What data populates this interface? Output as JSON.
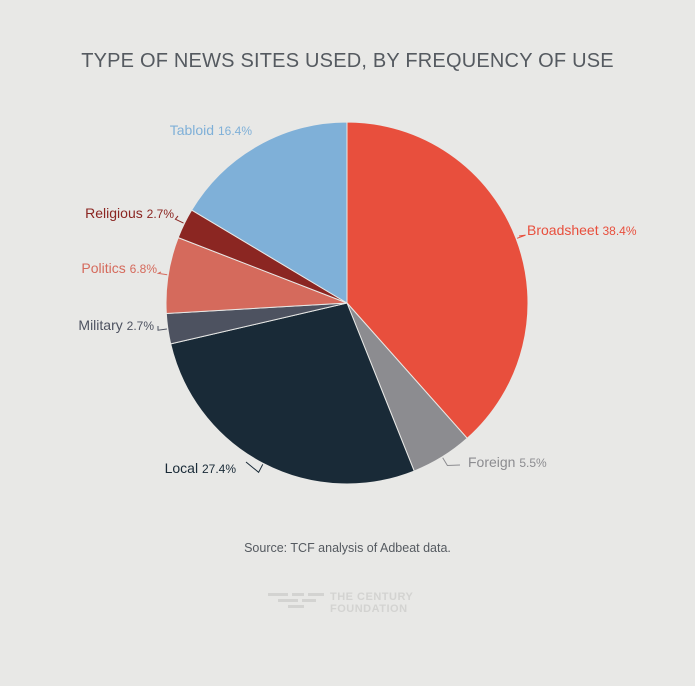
{
  "chart_data": {
    "type": "pie",
    "title": "TYPE OF NEWS SITES USED, BY FREQUENCY OF USE",
    "slices": [
      {
        "label": "Broadsheet",
        "value": 38.4,
        "value_label": "38.4%",
        "color": "#e84f3d"
      },
      {
        "label": "Foreign",
        "value": 5.5,
        "value_label": "5.5%",
        "color": "#8c8c90"
      },
      {
        "label": "Local",
        "value": 27.4,
        "value_label": "27.4%",
        "color": "#192a37"
      },
      {
        "label": "Military",
        "value": 2.7,
        "value_label": "2.7%",
        "color": "#4d5260"
      },
      {
        "label": "Politics",
        "value": 6.8,
        "value_label": "6.8%",
        "color": "#d56a5c"
      },
      {
        "label": "Religious",
        "value": 2.7,
        "value_label": "2.7%",
        "color": "#8b2622"
      },
      {
        "label": "Tabloid",
        "value": 16.4,
        "value_label": "16.4%",
        "color": "#7fb0d8"
      }
    ]
  },
  "source": "Source: TCF analysis of Adbeat data.",
  "logo": {
    "line1": "THE CENTURY",
    "line2": "FOUNDATION"
  }
}
